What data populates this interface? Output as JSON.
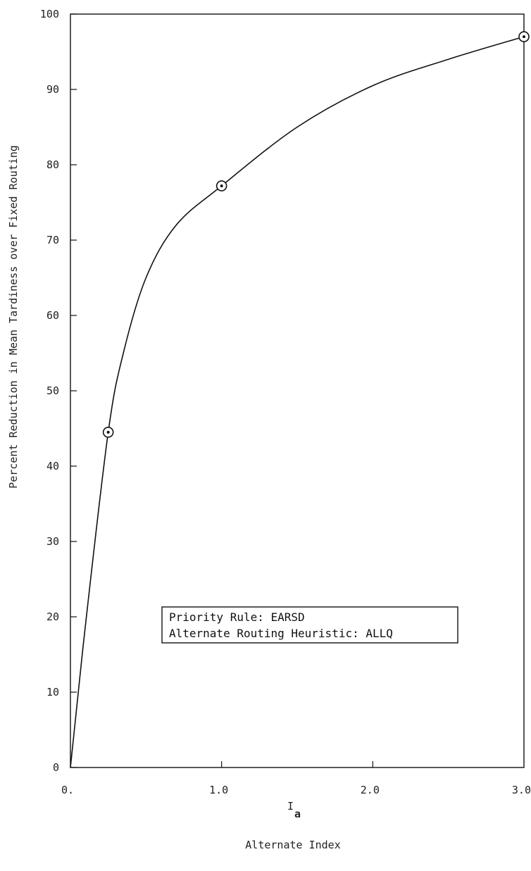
{
  "chart_data": {
    "type": "line",
    "xlabel_symbol": "I",
    "xlabel_subscript": "a",
    "xlabel": "Alternate Index",
    "ylabel": "Percent Reduction in Mean Tardiness over Fixed Routing",
    "xlim": [
      0,
      3.0
    ],
    "ylim": [
      0,
      100
    ],
    "x_ticks": [
      0,
      1.0,
      2.0,
      3.0
    ],
    "x_tick_labels": [
      "0.",
      "1.0",
      "2.0",
      "3.0"
    ],
    "y_ticks": [
      0,
      10,
      20,
      30,
      40,
      50,
      60,
      70,
      80,
      90,
      100
    ],
    "y_tick_labels": [
      "0",
      "10",
      "20",
      "30",
      "40",
      "50",
      "60",
      "70",
      "80",
      "90",
      "100"
    ],
    "series": [
      {
        "x": [
          0.25,
          1.0,
          3.0
        ],
        "values": [
          44.5,
          77.2,
          97.0
        ],
        "curve_x": [
          0,
          0.1,
          0.25,
          0.35,
          0.5,
          0.7,
          1.0,
          1.5,
          2.0,
          2.5,
          3.0
        ],
        "curve_y": [
          0,
          19,
          44.5,
          55,
          65,
          72,
          77.2,
          85,
          90.5,
          94,
          97.0
        ]
      }
    ],
    "legend": {
      "position": "center-right",
      "lines": [
        "Priority Rule: EARSD",
        "Alternate Routing Heuristic: ALLQ"
      ]
    },
    "grid": false
  }
}
